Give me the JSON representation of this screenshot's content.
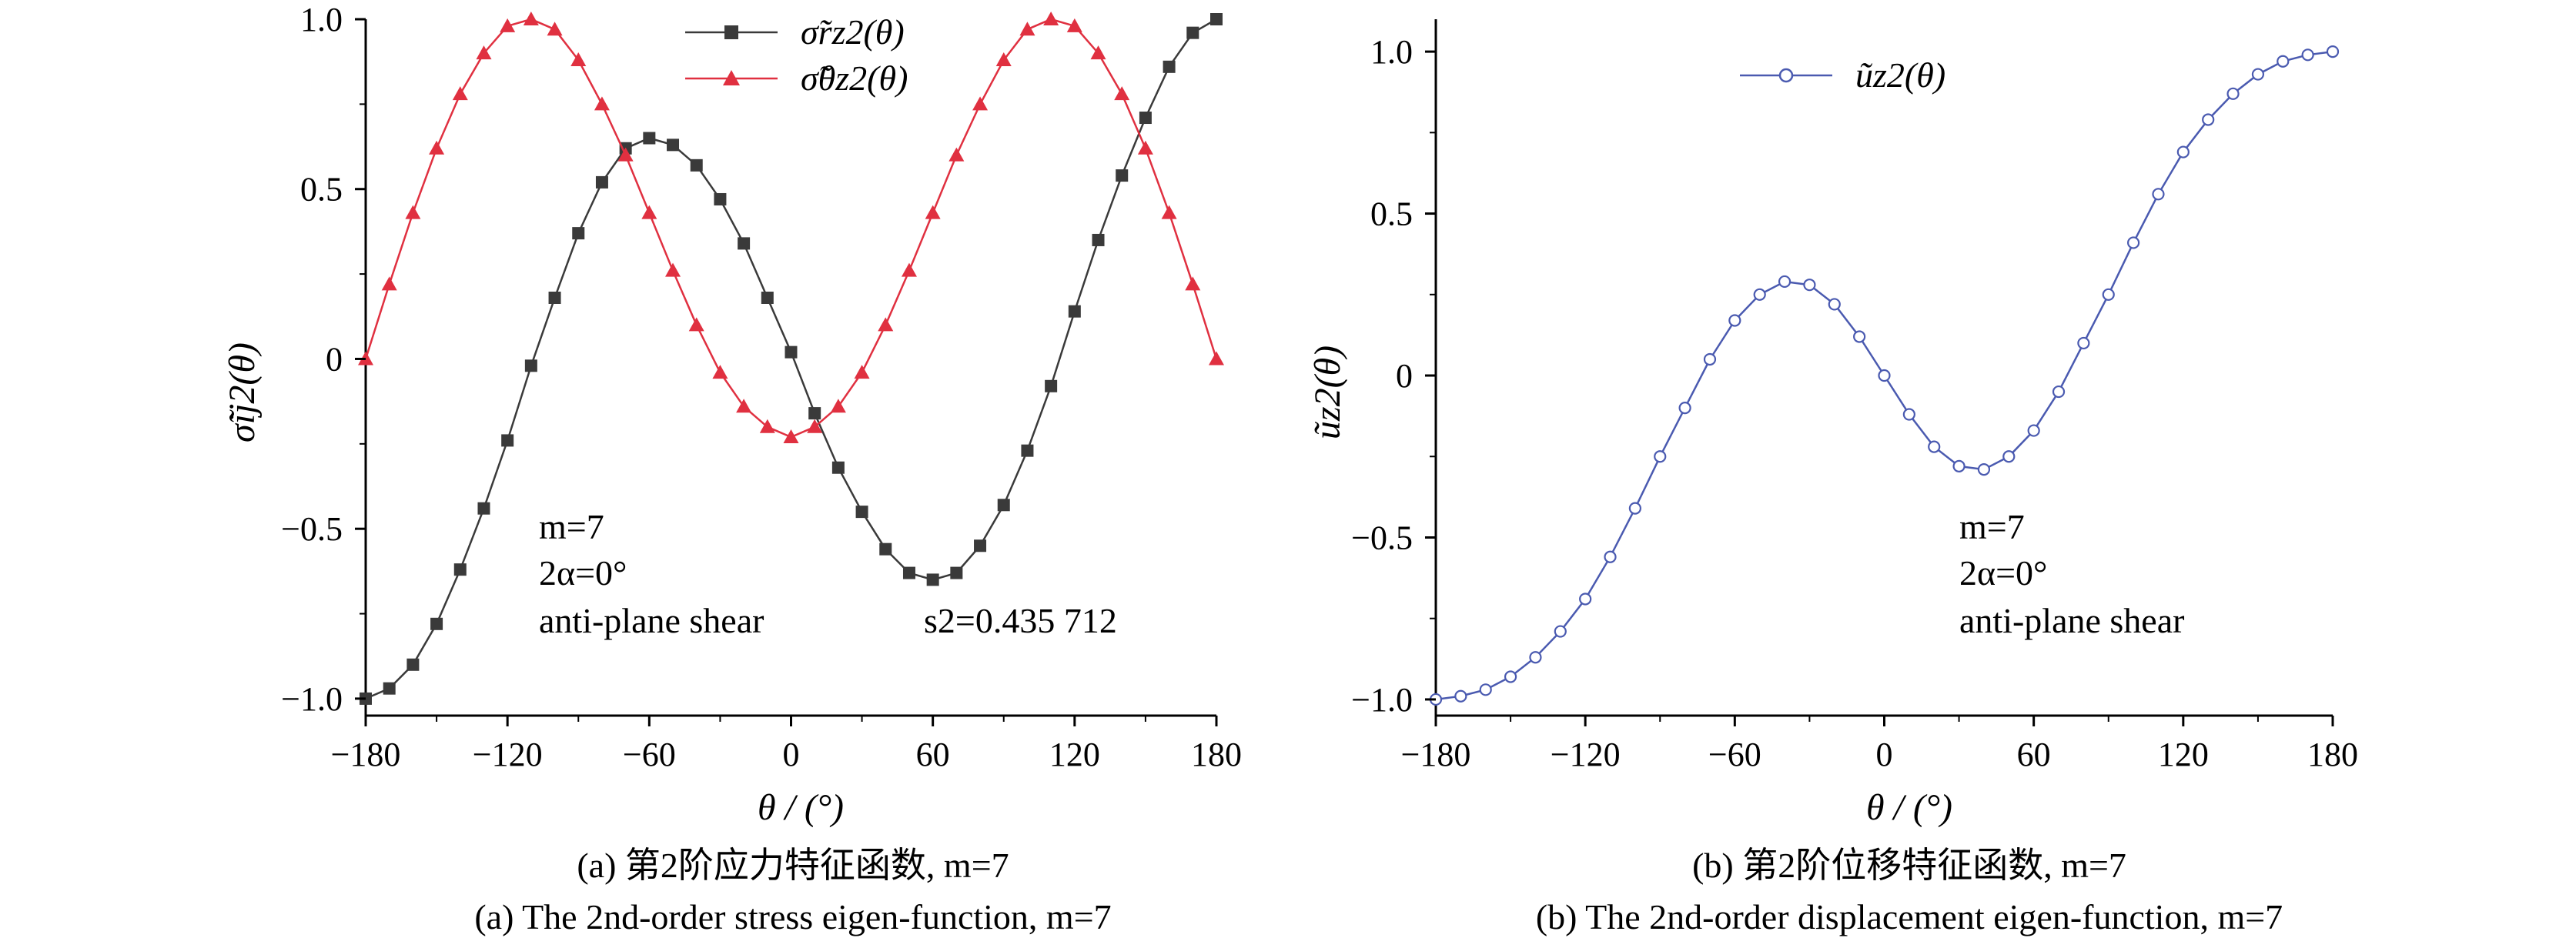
{
  "charts": [
    {
      "id": "a",
      "ylabel": "σ̃ij2(θ)",
      "xlabel": "θ / (°)",
      "x_ticks": [
        "−180",
        "−120",
        "−60",
        "0",
        "60",
        "120",
        "180"
      ],
      "y_ticks": [
        "−1.0",
        "−0.5",
        "0",
        "0.5",
        "1.0"
      ],
      "annotations": {
        "m": "m=7",
        "alpha": "2α=0°",
        "mode": "anti-plane shear",
        "s2": "s2=0.435 712"
      },
      "legend": [
        "σ̃rz2(θ)",
        "σ̃θz2(θ)"
      ],
      "caption_zh": "(a) 第2阶应力特征函数, m=7",
      "caption_en": "(a) The 2nd-order stress eigen-function, m=7"
    },
    {
      "id": "b",
      "ylabel": "ũz2(θ)",
      "xlabel": "θ / (°)",
      "x_ticks": [
        "−180",
        "−120",
        "−60",
        "0",
        "60",
        "120",
        "180"
      ],
      "y_ticks": [
        "−1.0",
        "−0.5",
        "0",
        "0.5",
        "1.0"
      ],
      "annotations": {
        "m": "m=7",
        "alpha": "2α=0°",
        "mode": "anti-plane shear"
      },
      "legend": [
        "ũz2(θ)"
      ],
      "caption_zh": "(b) 第2阶位移特征函数, m=7",
      "caption_en": "(b) The 2nd-order displacement eigen-function, m=7"
    }
  ],
  "chart_data": [
    {
      "type": "line",
      "title": "",
      "xlabel": "θ / (°)",
      "ylabel": "σ̃ij2(θ)",
      "xlim": [
        -180,
        180
      ],
      "ylim": [
        -1.05,
        1.0
      ],
      "x": [
        -180,
        -170,
        -160,
        -150,
        -140,
        -130,
        -120,
        -110,
        -100,
        -90,
        -80,
        -70,
        -60,
        -50,
        -40,
        -30,
        -20,
        -10,
        0,
        10,
        20,
        30,
        40,
        50,
        60,
        70,
        80,
        90,
        100,
        110,
        120,
        130,
        140,
        150,
        160,
        170,
        180
      ],
      "series": [
        {
          "name": "σ̃rz2(θ)",
          "color": "#3a3a3a",
          "marker": "square",
          "values": [
            -1.0,
            -0.97,
            -0.9,
            -0.78,
            -0.62,
            -0.44,
            -0.24,
            -0.02,
            0.18,
            0.37,
            0.52,
            0.62,
            0.65,
            0.63,
            0.57,
            0.47,
            0.34,
            0.18,
            0.02,
            -0.16,
            -0.32,
            -0.45,
            -0.56,
            -0.63,
            -0.65,
            -0.63,
            -0.55,
            -0.43,
            -0.27,
            -0.08,
            0.14,
            0.35,
            0.54,
            0.71,
            0.86,
            0.96,
            1.0
          ]
        },
        {
          "name": "σ̃θz2(θ)",
          "color": "#e03040",
          "marker": "triangle",
          "values": [
            0.0,
            0.22,
            0.43,
            0.62,
            0.78,
            0.9,
            0.98,
            1.0,
            0.97,
            0.88,
            0.75,
            0.6,
            0.43,
            0.26,
            0.1,
            -0.04,
            -0.14,
            -0.2,
            -0.23,
            -0.2,
            -0.14,
            -0.04,
            0.1,
            0.26,
            0.43,
            0.6,
            0.75,
            0.88,
            0.97,
            1.0,
            0.98,
            0.9,
            0.78,
            0.62,
            0.43,
            0.22,
            0.0
          ]
        }
      ],
      "grid": false,
      "legend_position": "top-center"
    },
    {
      "type": "line",
      "title": "",
      "xlabel": "θ / (°)",
      "ylabel": "ũz2(θ)",
      "xlim": [
        -180,
        180
      ],
      "ylim": [
        -1.05,
        1.1
      ],
      "x": [
        -180,
        -170,
        -160,
        -150,
        -140,
        -130,
        -120,
        -110,
        -100,
        -90,
        -80,
        -70,
        -60,
        -50,
        -40,
        -30,
        -20,
        -10,
        0,
        10,
        20,
        30,
        40,
        50,
        60,
        70,
        80,
        90,
        100,
        110,
        120,
        130,
        140,
        150,
        160,
        170,
        180
      ],
      "series": [
        {
          "name": "ũz2(θ)",
          "color": "#4a5ab0",
          "marker": "circle-open",
          "values": [
            -1.0,
            -0.99,
            -0.97,
            -0.93,
            -0.87,
            -0.79,
            -0.69,
            -0.56,
            -0.41,
            -0.25,
            -0.1,
            0.05,
            0.17,
            0.25,
            0.29,
            0.28,
            0.22,
            0.12,
            0.0,
            -0.12,
            -0.22,
            -0.28,
            -0.29,
            -0.25,
            -0.17,
            -0.05,
            0.1,
            0.25,
            0.41,
            0.56,
            0.69,
            0.79,
            0.87,
            0.93,
            0.97,
            0.99,
            1.0
          ]
        }
      ],
      "grid": false,
      "legend_position": "top-left"
    }
  ]
}
